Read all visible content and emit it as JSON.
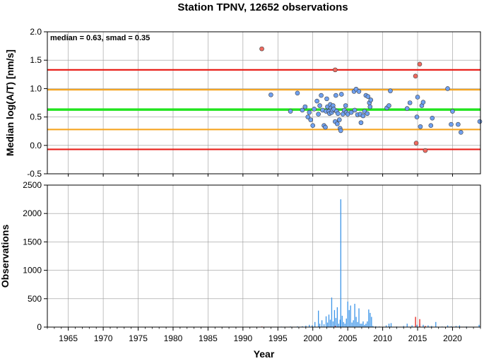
{
  "chart_data": [
    {
      "type": "scatter",
      "title": "Station TPNV, 12652 observations",
      "annotation": "median = 0.63, smad = 0.35",
      "ylabel": "Median log(A/T) [nm/s]",
      "xlim": [
        1962,
        2024
      ],
      "ylim": [
        -0.5,
        2.0
      ],
      "yticks": [
        "2.0",
        "1.5",
        "1.0",
        "0.5",
        "0.0",
        "-0.5"
      ],
      "ytick_values": [
        2.0,
        1.5,
        1.0,
        0.5,
        0.0,
        -0.5
      ],
      "grid": true,
      "reference_lines": [
        {
          "y": 1.33,
          "color": "#e8201a"
        },
        {
          "y": 0.98,
          "color": "#f5a623"
        },
        {
          "y": 0.63,
          "color": "#22e41f"
        },
        {
          "y": 0.28,
          "color": "#f5a623"
        },
        {
          "y": -0.07,
          "color": "#e8201a"
        }
      ],
      "series": [
        {
          "color": "#6fa0f0",
          "points": [
            [
              1994.0,
              0.89
            ],
            [
              1996.8,
              0.6
            ],
            [
              1997.8,
              0.92
            ],
            [
              1998.5,
              0.62
            ],
            [
              1998.9,
              0.68
            ],
            [
              1999.3,
              0.5
            ],
            [
              1999.5,
              0.58
            ],
            [
              1999.7,
              0.45
            ],
            [
              2000.0,
              0.35
            ],
            [
              2000.2,
              0.64
            ],
            [
              2000.6,
              0.78
            ],
            [
              2000.8,
              0.55
            ],
            [
              2001.0,
              0.7
            ],
            [
              2001.2,
              0.88
            ],
            [
              2001.4,
              0.62
            ],
            [
              2001.6,
              0.35
            ],
            [
              2001.8,
              0.32
            ],
            [
              2001.9,
              0.6
            ],
            [
              2002.0,
              0.82
            ],
            [
              2002.1,
              0.68
            ],
            [
              2002.3,
              0.6
            ],
            [
              2002.4,
              0.56
            ],
            [
              2002.5,
              0.72
            ],
            [
              2002.6,
              0.66
            ],
            [
              2002.7,
              0.58
            ],
            [
              2002.8,
              0.62
            ],
            [
              2002.9,
              0.7
            ],
            [
              2003.0,
              0.64
            ],
            [
              2003.2,
              0.42
            ],
            [
              2003.3,
              0.88
            ],
            [
              2003.4,
              0.6
            ],
            [
              2003.5,
              0.38
            ],
            [
              2003.6,
              0.56
            ],
            [
              2003.8,
              0.45
            ],
            [
              2003.9,
              0.3
            ],
            [
              2004.0,
              0.26
            ],
            [
              2004.1,
              0.9
            ],
            [
              2004.3,
              0.55
            ],
            [
              2004.5,
              0.62
            ],
            [
              2004.7,
              0.7
            ],
            [
              2004.8,
              0.58
            ],
            [
              2005.0,
              0.55
            ],
            [
              2005.5,
              0.58
            ],
            [
              2005.9,
              0.95
            ],
            [
              2006.0,
              0.62
            ],
            [
              2006.2,
              0.99
            ],
            [
              2006.4,
              0.54
            ],
            [
              2006.6,
              0.95
            ],
            [
              2006.8,
              0.55
            ],
            [
              2006.9,
              0.4
            ],
            [
              2007.2,
              0.52
            ],
            [
              2007.4,
              0.6
            ],
            [
              2007.6,
              0.88
            ],
            [
              2007.8,
              0.56
            ],
            [
              2007.9,
              0.86
            ],
            [
              2008.1,
              0.75
            ],
            [
              2008.2,
              0.68
            ],
            [
              2008.3,
              0.8
            ],
            [
              2010.6,
              0.66
            ],
            [
              2010.9,
              0.7
            ],
            [
              2011.1,
              0.96
            ],
            [
              2013.5,
              0.65
            ],
            [
              2013.9,
              0.75
            ],
            [
              2014.9,
              0.5
            ],
            [
              2015.0,
              0.85
            ],
            [
              2015.4,
              0.33
            ],
            [
              2015.6,
              0.7
            ],
            [
              2015.8,
              0.76
            ],
            [
              2016.9,
              0.35
            ],
            [
              2017.1,
              0.48
            ],
            [
              2019.3,
              1.0
            ],
            [
              2019.8,
              0.37
            ],
            [
              2020.0,
              0.6
            ],
            [
              2020.8,
              0.37
            ],
            [
              2021.2,
              0.23
            ],
            [
              2023.9,
              0.42
            ]
          ]
        },
        {
          "color": "#f06a60",
          "points": [
            [
              1992.7,
              1.7
            ],
            [
              2003.2,
              1.33
            ],
            [
              2014.7,
              1.22
            ],
            [
              2014.8,
              0.04
            ],
            [
              2015.3,
              1.43
            ],
            [
              2016.1,
              -0.09
            ]
          ]
        }
      ]
    },
    {
      "type": "bar",
      "ylabel": "Observations",
      "xlabel": "Year",
      "xlim": [
        1962,
        2024
      ],
      "ylim": [
        0,
        2500
      ],
      "xticks": [
        "1965",
        "1970",
        "1975",
        "1980",
        "1985",
        "1990",
        "1995",
        "2000",
        "2005",
        "2010",
        "2015",
        "2020"
      ],
      "xtick_values": [
        1965,
        1970,
        1975,
        1980,
        1985,
        1990,
        1995,
        2000,
        2005,
        2010,
        2015,
        2020
      ],
      "yticks": [
        "2500",
        "2000",
        "1500",
        "1000",
        "500",
        "0"
      ],
      "ytick_values": [
        2500,
        2000,
        1500,
        1000,
        500,
        0
      ],
      "grid": true,
      "series": [
        {
          "color": "#3d95e8",
          "bars": [
            [
              1994.0,
              5
            ],
            [
              1995.5,
              8
            ],
            [
              1996.8,
              10
            ],
            [
              1997.8,
              12
            ],
            [
              1998.5,
              15
            ],
            [
              1999.0,
              25
            ],
            [
              1999.5,
              40
            ],
            [
              1999.9,
              30
            ],
            [
              2000.3,
              90
            ],
            [
              2000.8,
              290
            ],
            [
              2001.0,
              60
            ],
            [
              2001.3,
              120
            ],
            [
              2001.6,
              50
            ],
            [
              2001.9,
              190
            ],
            [
              2002.1,
              80
            ],
            [
              2002.3,
              220
            ],
            [
              2002.5,
              130
            ],
            [
              2002.7,
              520
            ],
            [
              2002.9,
              100
            ],
            [
              2003.1,
              300
            ],
            [
              2003.3,
              160
            ],
            [
              2003.5,
              350
            ],
            [
              2003.7,
              60
            ],
            [
              2003.9,
              130
            ],
            [
              2004.0,
              2250
            ],
            [
              2004.2,
              200
            ],
            [
              2004.4,
              90
            ],
            [
              2004.6,
              60
            ],
            [
              2004.8,
              150
            ],
            [
              2005.0,
              450
            ],
            [
              2005.2,
              300
            ],
            [
              2005.4,
              380
            ],
            [
              2005.6,
              80
            ],
            [
              2005.8,
              120
            ],
            [
              2006.0,
              410
            ],
            [
              2006.2,
              180
            ],
            [
              2006.4,
              90
            ],
            [
              2006.6,
              330
            ],
            [
              2006.8,
              60
            ],
            [
              2007.0,
              60
            ],
            [
              2007.2,
              100
            ],
            [
              2007.4,
              40
            ],
            [
              2007.6,
              60
            ],
            [
              2007.8,
              100
            ],
            [
              2008.0,
              310
            ],
            [
              2008.2,
              250
            ],
            [
              2008.4,
              180
            ],
            [
              2008.6,
              20
            ],
            [
              2009.0,
              15
            ],
            [
              2009.5,
              10
            ],
            [
              2010.5,
              30
            ],
            [
              2010.9,
              60
            ],
            [
              2011.2,
              70
            ],
            [
              2012.0,
              10
            ],
            [
              2013.0,
              20
            ],
            [
              2013.5,
              60
            ],
            [
              2014.2,
              30
            ],
            [
              2014.9,
              40
            ],
            [
              2015.3,
              60
            ],
            [
              2015.8,
              40
            ],
            [
              2016.5,
              30
            ],
            [
              2017.0,
              20
            ],
            [
              2017.6,
              90
            ],
            [
              2018.5,
              10
            ],
            [
              2019.3,
              30
            ],
            [
              2019.8,
              15
            ],
            [
              2020.5,
              20
            ],
            [
              2021.0,
              30
            ],
            [
              2022.0,
              10
            ],
            [
              2023.8,
              40
            ]
          ]
        },
        {
          "color": "#e8201a",
          "bars": [
            [
              1992.7,
              10
            ],
            [
              2003.2,
              20
            ],
            [
              2014.7,
              180
            ],
            [
              2015.3,
              140
            ],
            [
              2016.1,
              20
            ]
          ]
        }
      ]
    }
  ]
}
